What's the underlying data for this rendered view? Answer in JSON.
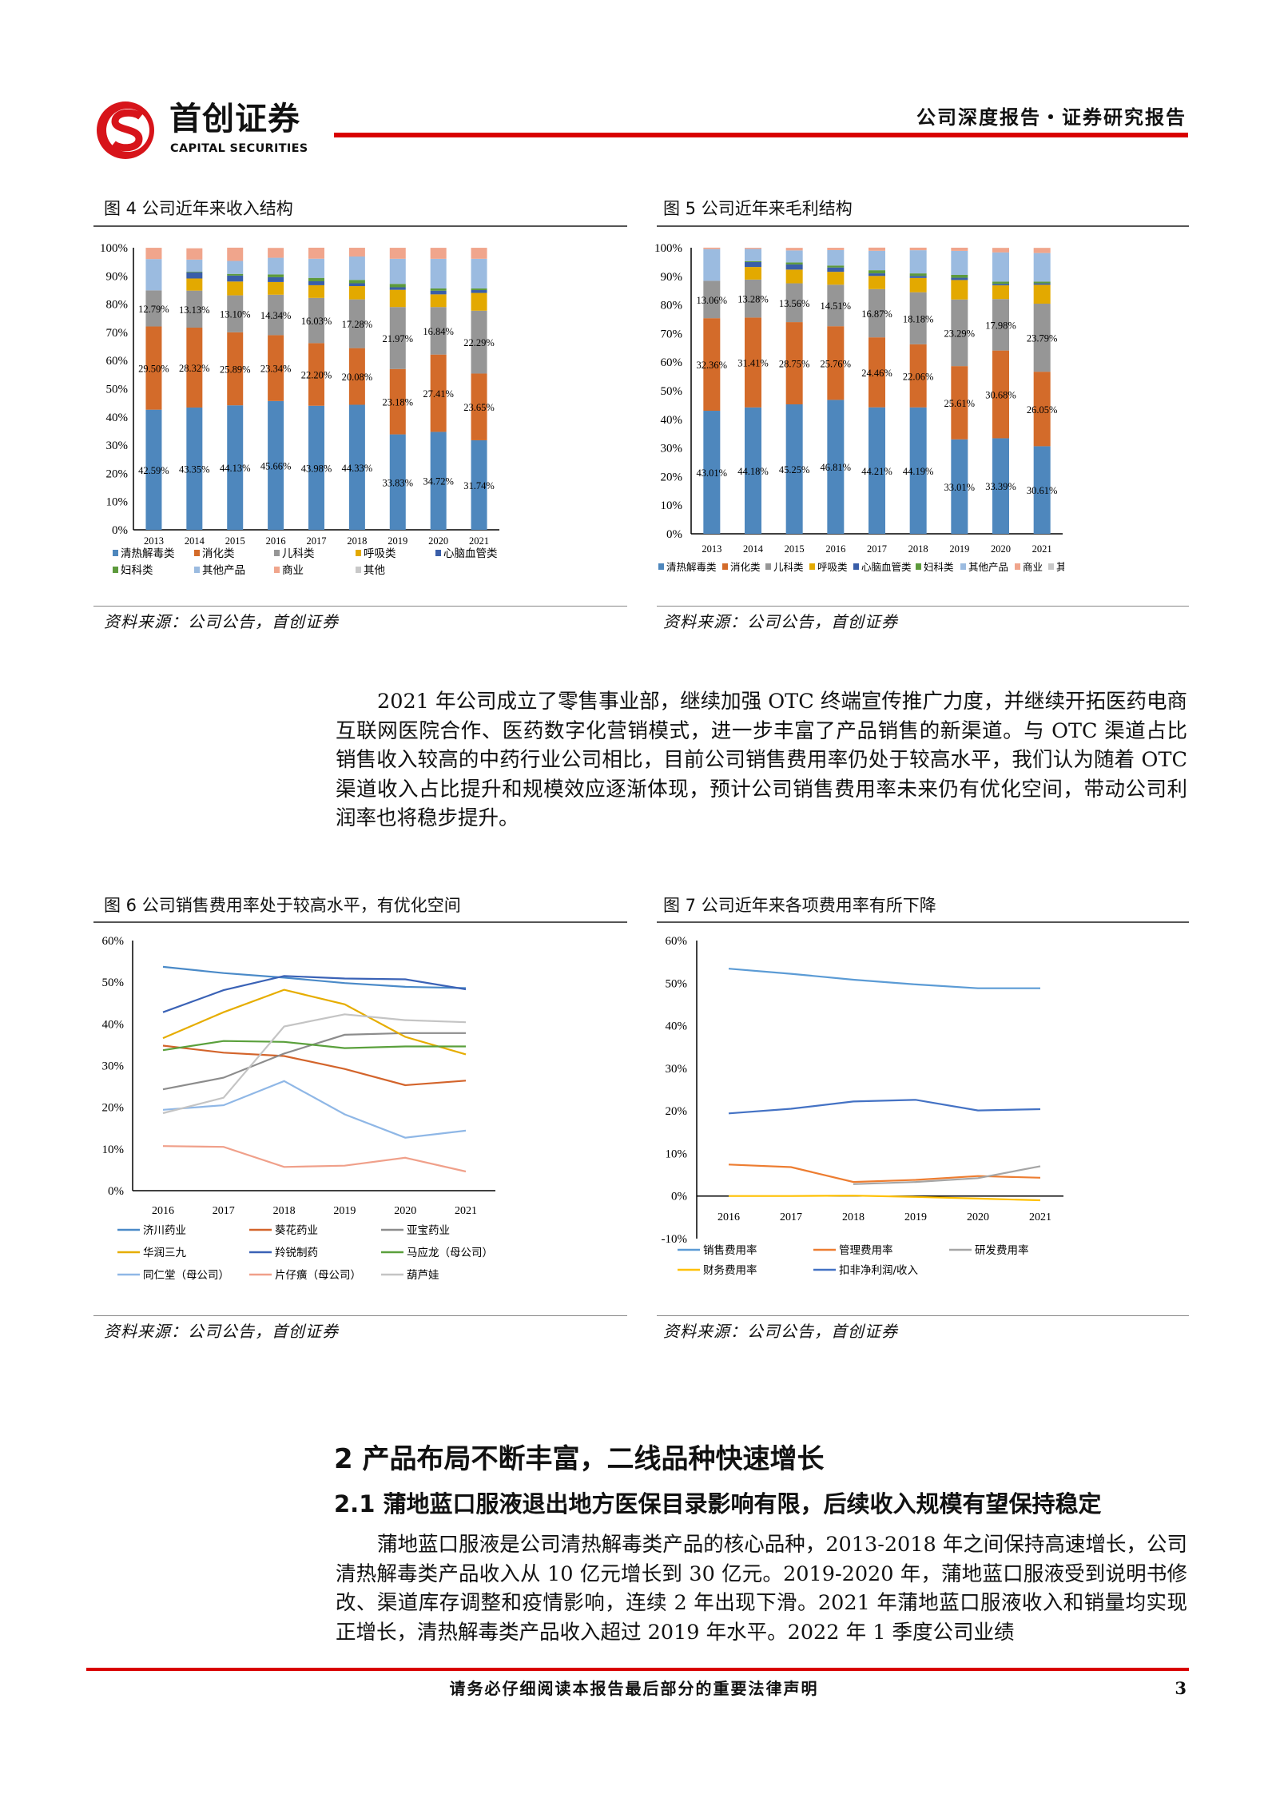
{
  "header": {
    "logo_cn": "首创证券",
    "logo_en": "CAPITAL SECURITIES",
    "report_type": "公司深度报告・证券研究报告",
    "brand_color": "#d90000"
  },
  "figures": {
    "fig4_title": "图 4 公司近年来收入结构",
    "fig5_title": "图 5 公司近年来毛利结构",
    "fig6_title": "图 6 公司销售费用率处于较高水平，有优化空间",
    "fig7_title": "图 7 公司近年来各项费用率有所下降",
    "source": "资料来源：公司公告，首创证券"
  },
  "body": {
    "paragraph1": "2021 年公司成立了零售事业部，继续加强 OTC 终端宣传推广力度，并继续开拓医药电商互联网医院合作、医药数字化营销模式，进一步丰富了产品销售的新渠道。与 OTC 渠道占比销售收入较高的中药行业公司相比，目前公司销售费用率仍处于较高水平，我们认为随着 OTC 渠道收入占比提升和规模效应逐渐体现，预计公司销售费用率未来仍有优化空间，带动公司利润率也将稳步提升。",
    "heading2": "2  产品布局不断丰富，二线品种快速增长",
    "heading3": "2.1  蒲地蓝口服液退出地方医保目录影响有限，后续收入规模有望保持稳定",
    "paragraph2": "蒲地蓝口服液是公司清热解毒类产品的核心品种，2013-2018 年之间保持高速增长，公司清热解毒类产品收入从 10 亿元增长到 30 亿元。2019-2020 年，蒲地蓝口服液受到说明书修改、渠道库存调整和疫情影响，连续 2 年出现下滑。2021 年蒲地蓝口服液收入和销量均实现正增长，清热解毒类产品收入超过 2019 年水平。2022 年 1 季度公司业绩"
  },
  "footer": {
    "disclaimer": "请务必仔细阅读本报告最后部分的重要法律声明",
    "page_number": "3"
  },
  "chart_data": [
    {
      "type": "bar",
      "stacked": true,
      "title": "图 4 公司近年来收入结构",
      "categories": [
        "2013",
        "2014",
        "2015",
        "2016",
        "2017",
        "2018",
        "2019",
        "2020",
        "2021"
      ],
      "ylim": [
        0,
        100
      ],
      "yticks": [
        "0%",
        "10%",
        "20%",
        "30%",
        "40%",
        "50%",
        "60%",
        "70%",
        "80%",
        "90%",
        "100%"
      ],
      "legend": "bottom",
      "series": [
        {
          "name": "清热解毒类",
          "color": "#4e87bd",
          "labeled": true,
          "values": [
            42.59,
            43.35,
            44.13,
            45.66,
            43.98,
            44.33,
            33.83,
            34.72,
            31.74
          ]
        },
        {
          "name": "消化类",
          "color": "#d36b2a",
          "labeled": true,
          "values": [
            29.5,
            28.32,
            25.89,
            23.34,
            22.2,
            20.08,
            23.18,
            27.41,
            23.65
          ]
        },
        {
          "name": "儿科类",
          "color": "#969696",
          "labeled": true,
          "values": [
            12.79,
            13.13,
            13.1,
            14.34,
            16.03,
            17.28,
            21.97,
            16.84,
            22.29
          ]
        },
        {
          "name": "呼吸类",
          "color": "#e3a900",
          "values": [
            0,
            4.3,
            4.9,
            4.5,
            4.5,
            4.7,
            6.1,
            4.5,
            6.3
          ]
        },
        {
          "name": "心脑血管类",
          "color": "#3a5ea8",
          "values": [
            0,
            2.2,
            2.1,
            1.7,
            1.4,
            1.0,
            0.9,
            1.3,
            1.0
          ]
        },
        {
          "name": "妇科类",
          "color": "#5d9a3c",
          "values": [
            0,
            0.2,
            0.6,
            1.0,
            1.2,
            1.2,
            1.2,
            0.8,
            0.6
          ]
        },
        {
          "name": "其他产品",
          "color": "#9bbbe0",
          "values": [
            11.1,
            4.3,
            4.6,
            5.9,
            6.8,
            8.3,
            8.9,
            10.5,
            10.5
          ]
        },
        {
          "name": "商业",
          "color": "#f0a58c",
          "values": [
            4.0,
            4.0,
            4.7,
            3.5,
            3.9,
            3.1,
            3.9,
            3.9,
            3.9
          ]
        },
        {
          "name": "其他",
          "color": "#c8c8c8",
          "values": [
            0,
            0,
            0,
            0,
            0,
            0,
            0,
            0,
            0
          ]
        }
      ]
    },
    {
      "type": "bar",
      "stacked": true,
      "title": "图 5 公司近年来毛利结构",
      "categories": [
        "2013",
        "2014",
        "2015",
        "2016",
        "2017",
        "2018",
        "2019",
        "2020",
        "2021"
      ],
      "ylim": [
        0,
        100
      ],
      "yticks": [
        "0%",
        "10%",
        "20%",
        "30%",
        "40%",
        "50%",
        "60%",
        "70%",
        "80%",
        "90%",
        "100%"
      ],
      "legend": "bottom",
      "series": [
        {
          "name": "清热解毒类",
          "color": "#4e87bd",
          "labeled": true,
          "values": [
            43.01,
            44.18,
            45.25,
            46.81,
            44.21,
            44.19,
            33.01,
            33.39,
            30.61
          ]
        },
        {
          "name": "消化类",
          "color": "#d36b2a",
          "labeled": true,
          "values": [
            32.36,
            31.41,
            28.75,
            25.76,
            24.46,
            22.06,
            25.61,
            30.68,
            26.05
          ]
        },
        {
          "name": "儿科类",
          "color": "#969696",
          "labeled": true,
          "values": [
            13.06,
            13.28,
            13.56,
            14.51,
            16.87,
            18.18,
            23.29,
            17.98,
            23.79
          ]
        },
        {
          "name": "呼吸类",
          "color": "#e3a900",
          "values": [
            0,
            4.4,
            4.8,
            4.5,
            4.6,
            5.0,
            6.8,
            4.8,
            6.6
          ]
        },
        {
          "name": "心脑血管类",
          "color": "#3a5ea8",
          "values": [
            0,
            1.7,
            1.8,
            1.5,
            0.9,
            0.7,
            0.8,
            0.5,
            0.5
          ]
        },
        {
          "name": "妇科类",
          "color": "#5d9a3c",
          "values": [
            0,
            0.3,
            0.7,
            0.7,
            1.1,
            0.9,
            1.0,
            0.8,
            0.6
          ]
        },
        {
          "name": "其他产品",
          "color": "#9bbbe0",
          "values": [
            11.1,
            4.3,
            4.2,
            5.4,
            6.8,
            8.1,
            8.4,
            10.2,
            10.0
          ]
        },
        {
          "name": "商业",
          "color": "#f0a58c",
          "values": [
            0.5,
            0.4,
            0.9,
            0.8,
            1.1,
            0.9,
            1.1,
            1.6,
            1.8
          ]
        },
        {
          "name": "其他",
          "color": "#c8c8c8",
          "values": [
            0,
            0,
            0,
            0,
            0,
            0,
            0,
            0,
            0
          ]
        }
      ]
    },
    {
      "type": "line",
      "title": "图 6 公司销售费用率处于较高水平，有优化空间",
      "x": [
        "2016",
        "2017",
        "2018",
        "2019",
        "2020",
        "2021"
      ],
      "ylim": [
        0,
        60
      ],
      "yticks": [
        "0%",
        "10%",
        "20%",
        "30%",
        "40%",
        "50%",
        "60%"
      ],
      "legend": "bottom",
      "series": [
        {
          "name": "济川药业",
          "color": "#4a8ac8",
          "values": [
            53.7,
            52.2,
            51.1,
            49.8,
            48.9,
            48.6
          ]
        },
        {
          "name": "葵花药业",
          "color": "#d3642b",
          "values": [
            34.8,
            33.1,
            32.3,
            29.2,
            25.3,
            26.4
          ]
        },
        {
          "name": "亚宝药业",
          "color": "#8c8c8c",
          "values": [
            24.3,
            27.1,
            32.9,
            37.4,
            37.8,
            37.8
          ]
        },
        {
          "name": "华润三九",
          "color": "#e6ad00",
          "values": [
            36.6,
            42.8,
            48.2,
            44.7,
            36.9,
            32.7
          ]
        },
        {
          "name": "羚锐制药",
          "color": "#3a62b6",
          "values": [
            42.8,
            48.1,
            51.5,
            50.9,
            50.7,
            48.3
          ]
        },
        {
          "name": "马应龙（母公司）",
          "color": "#5aa03c",
          "values": [
            33.7,
            35.9,
            35.7,
            34.2,
            34.6,
            34.6
          ]
        },
        {
          "name": "同仁堂（母公司）",
          "color": "#8fb7e6",
          "values": [
            19.4,
            20.5,
            26.3,
            18.3,
            12.7,
            14.4
          ]
        },
        {
          "name": "片仔癀（母公司）",
          "color": "#f0a08a",
          "values": [
            10.7,
            10.5,
            5.7,
            6.0,
            7.9,
            4.6
          ]
        },
        {
          "name": "葫芦娃",
          "color": "#c4c4c4",
          "values": [
            18.6,
            22.3,
            39.4,
            42.3,
            40.9,
            40.4
          ]
        }
      ]
    },
    {
      "type": "line",
      "title": "图 7 公司近年来各项费用率有所下降",
      "x": [
        "2016",
        "2017",
        "2018",
        "2019",
        "2020",
        "2021"
      ],
      "ylim": [
        -10,
        60
      ],
      "yticks": [
        "-10%",
        "0%",
        "10%",
        "20%",
        "30%",
        "40%",
        "50%",
        "60%"
      ],
      "legend": "bottom",
      "series": [
        {
          "name": "销售费用率",
          "color": "#5b9bd5",
          "values": [
            53.4,
            52.2,
            50.8,
            49.7,
            48.8,
            48.8
          ]
        },
        {
          "name": "管理费用率",
          "color": "#ed7d31",
          "values": [
            7.4,
            6.8,
            3.3,
            3.8,
            4.7,
            4.3
          ]
        },
        {
          "name": "研发费用率",
          "color": "#a5a5a5",
          "values": [
            null,
            null,
            2.8,
            3.3,
            4.2,
            7.0
          ]
        },
        {
          "name": "财务费用率",
          "color": "#ffc000",
          "values": [
            0.0,
            0.0,
            0.1,
            -0.2,
            -0.6,
            -1.0
          ]
        },
        {
          "name": "扣非净利润/收入",
          "color": "#4472c4",
          "values": [
            19.4,
            20.5,
            22.2,
            22.6,
            20.1,
            20.4
          ]
        }
      ]
    }
  ]
}
